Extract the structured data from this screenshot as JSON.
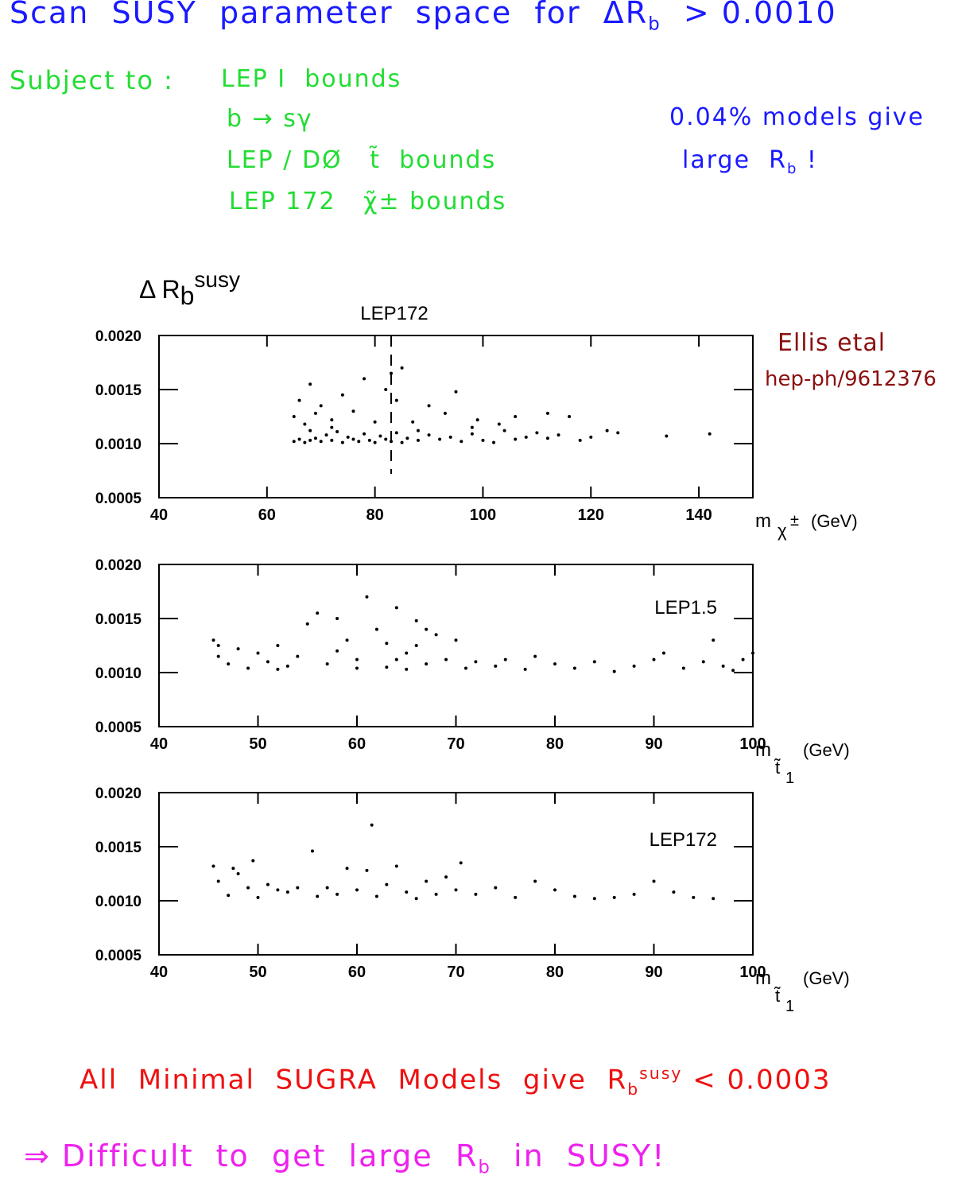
{
  "header": {
    "text": "Scan  SUSY  parameter  space  for  ΔR",
    "sub": "b",
    "tail": "  > 0.0010"
  },
  "constraints": {
    "label": "Subject to :",
    "items": [
      "LEP I  bounds",
      "b → sγ",
      "LEP / DØ   t̃  bounds",
      "LEP 172   χ̃± bounds"
    ]
  },
  "note": {
    "line1": "0.04% models give",
    "line2": "large  R",
    "line2_sub": "b",
    "line2_tail": " !"
  },
  "reference": {
    "authors": "Ellis etal",
    "preprint": "hep-ph/9612376"
  },
  "conclusion": {
    "text": "All  Minimal  SUGRA  Models  give  R",
    "sub": "b",
    "sup": "susy",
    "tail": " < 0.0003"
  },
  "implication": {
    "text": "⇒ Difficult  to  get  large  R",
    "sub": "b",
    "tail": "  in  SUSY!"
  },
  "chart_data": [
    {
      "type": "scatter",
      "ylabel": "Δ R",
      "ylabel_sub": "b",
      "ylabel_sup": "susy",
      "xlabel": "m",
      "xlabel_sub": "χ",
      "xlabel_sup": "±",
      "xlabel_unit": "(GeV)",
      "annotation": "LEP172",
      "vline": 83,
      "color": "#000000",
      "xlim": [
        40,
        150
      ],
      "xticks": [
        40,
        60,
        80,
        100,
        120,
        140
      ],
      "ylim": [
        0.0005,
        0.002
      ],
      "yticks": [
        {
          "value": 0.002,
          "label": "0.0020"
        },
        0.0015,
        {
          "value": 0.001,
          "label": "0.0010"
        },
        0.0005
      ],
      "x": [
        65,
        66,
        67,
        68,
        69,
        70,
        71,
        72,
        73,
        74,
        75,
        76,
        77,
        78,
        79,
        80,
        81,
        82,
        83,
        84,
        85,
        86,
        88,
        90,
        92,
        94,
        96,
        98,
        100,
        102,
        104,
        106,
        108,
        110,
        112,
        114,
        116,
        118,
        120,
        123,
        125,
        134,
        142,
        65,
        66,
        67,
        68,
        69,
        70,
        72,
        74,
        76,
        78,
        80,
        82,
        83,
        85,
        84,
        87,
        90,
        93,
        95,
        99,
        103,
        106,
        112,
        98,
        88,
        72,
        68
      ],
      "values": [
        0.00102,
        0.00104,
        0.00101,
        0.00103,
        0.00105,
        0.00102,
        0.00108,
        0.00103,
        0.00111,
        0.00101,
        0.00106,
        0.00104,
        0.00102,
        0.00109,
        0.00103,
        0.00101,
        0.00107,
        0.00104,
        0.00102,
        0.0011,
        0.00101,
        0.00105,
        0.00103,
        0.00108,
        0.00104,
        0.00106,
        0.00102,
        0.00109,
        0.00103,
        0.00101,
        0.00112,
        0.00104,
        0.00106,
        0.0011,
        0.00105,
        0.00108,
        0.00125,
        0.00103,
        0.00106,
        0.00112,
        0.0011,
        0.00107,
        0.00109,
        0.00125,
        0.0014,
        0.00118,
        0.00155,
        0.00128,
        0.00135,
        0.00122,
        0.00145,
        0.0013,
        0.0016,
        0.0012,
        0.0015,
        0.00165,
        0.0017,
        0.0014,
        0.0012,
        0.00135,
        0.00128,
        0.00148,
        0.00122,
        0.00118,
        0.00125,
        0.00128,
        0.00115,
        0.00112,
        0.00115,
        0.00112
      ]
    },
    {
      "type": "scatter",
      "xlabel": "m",
      "xlabel_sub": "t̃",
      "xlabel_sub2": "1",
      "xlabel_unit": "(GeV)",
      "annotation": "LEP1.5",
      "color": "#000000",
      "xlim": [
        40,
        100
      ],
      "xticks": [
        40,
        50,
        60,
        70,
        80,
        90,
        100
      ],
      "ylim": [
        0.0005,
        0.002
      ],
      "yticks": [
        {
          "value": 0.002,
          "label": "0.0020"
        },
        0.0015,
        {
          "value": 0.001,
          "label": "0.0010"
        },
        0.0005
      ],
      "x": [
        45.5,
        46,
        47,
        48,
        49,
        50,
        51,
        52,
        53,
        54,
        56,
        57,
        58,
        59,
        60,
        61,
        62,
        63,
        64,
        65,
        66,
        67,
        68,
        69,
        70,
        71,
        72,
        74,
        75,
        77,
        78,
        80,
        82,
        84,
        86,
        88,
        90,
        91,
        93,
        95,
        96,
        97,
        98,
        99,
        100,
        46,
        55,
        63,
        65,
        67,
        60,
        58,
        52,
        64,
        66
      ],
      "values": [
        0.0013,
        0.00115,
        0.00108,
        0.00122,
        0.00104,
        0.00118,
        0.0011,
        0.00125,
        0.00106,
        0.00115,
        0.00155,
        0.00108,
        0.0015,
        0.0013,
        0.00112,
        0.0017,
        0.0014,
        0.00105,
        0.0016,
        0.00118,
        0.00148,
        0.00108,
        0.00135,
        0.00112,
        0.0013,
        0.00104,
        0.0011,
        0.00106,
        0.00112,
        0.00103,
        0.00115,
        0.00108,
        0.00104,
        0.0011,
        0.00101,
        0.00106,
        0.00112,
        0.00118,
        0.00104,
        0.0011,
        0.0013,
        0.00106,
        0.00102,
        0.00112,
        0.00118,
        0.00125,
        0.00145,
        0.00127,
        0.00103,
        0.0014,
        0.00104,
        0.0012,
        0.00103,
        0.00112,
        0.00125
      ]
    },
    {
      "type": "scatter",
      "xlabel": "m",
      "xlabel_sub": "t̃",
      "xlabel_sub2": "1",
      "xlabel_unit": "(GeV)",
      "annotation": "LEP172",
      "color": "#000000",
      "xlim": [
        40,
        100
      ],
      "xticks": [
        40,
        50,
        60,
        70,
        80,
        90,
        100
      ],
      "ylim": [
        0.0005,
        0.002
      ],
      "yticks": [
        {
          "value": 0.002,
          "label": "0.0020"
        },
        0.0015,
        {
          "value": 0.001,
          "label": "0.0010"
        },
        0.0005
      ],
      "x": [
        45.5,
        46,
        47,
        48,
        49,
        49.5,
        50,
        51,
        53,
        54,
        55.5,
        56,
        57,
        58,
        59,
        60,
        61,
        61.5,
        62,
        63,
        64,
        65,
        66,
        67,
        68,
        69,
        70,
        70.5,
        72,
        74,
        76,
        78,
        80,
        82,
        84,
        86,
        88,
        90,
        92,
        94,
        96,
        47.5,
        52
      ],
      "values": [
        0.00132,
        0.00118,
        0.00105,
        0.00125,
        0.00112,
        0.00137,
        0.00103,
        0.00115,
        0.00108,
        0.00112,
        0.00146,
        0.00104,
        0.00112,
        0.00106,
        0.0013,
        0.0011,
        0.00128,
        0.0017,
        0.00104,
        0.00115,
        0.00132,
        0.00108,
        0.00102,
        0.00118,
        0.00106,
        0.00122,
        0.0011,
        0.00135,
        0.00106,
        0.00112,
        0.00103,
        0.00118,
        0.0011,
        0.00104,
        0.00102,
        0.00103,
        0.00106,
        0.00118,
        0.00108,
        0.00103,
        0.00102,
        0.0013,
        0.0011
      ]
    }
  ]
}
